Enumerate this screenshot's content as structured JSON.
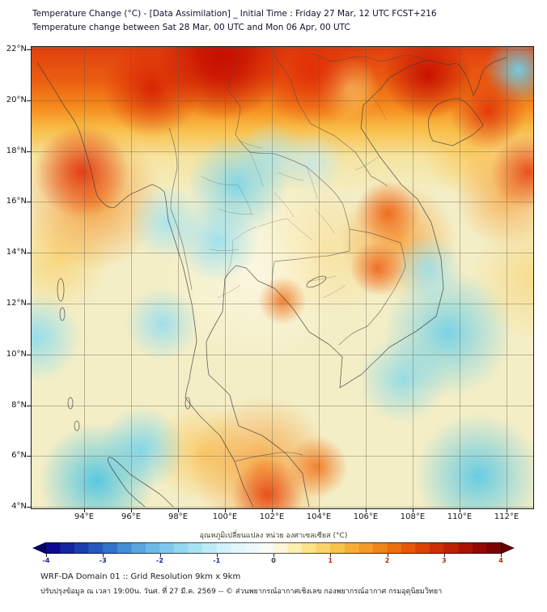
{
  "header": {
    "title_line1": "Temperature Change (°C) - [Data Assimilation] _ Initial Time : Friday 27 Mar, 12 UTC FCST+216",
    "title_line2": "Temperature change between Sat 28 Mar, 00 UTC and Mon 06 Apr, 00 UTC"
  },
  "map": {
    "lat_ticks": [
      "22°N",
      "20°N",
      "18°N",
      "16°N",
      "14°N",
      "12°N",
      "10°N",
      "8°N",
      "6°N",
      "4°N"
    ],
    "lon_ticks": [
      "94°E",
      "96°E",
      "98°E",
      "100°E",
      "102°E",
      "104°E",
      "106°E",
      "108°E",
      "110°E",
      "112°E"
    ]
  },
  "colorbar": {
    "title": "อุณหภูมิเปลี่ยนแปลง หน่วย องศาเซลเซียส (°C)",
    "range_min": -4,
    "range_max": 4,
    "tick_labels": [
      "-4",
      "-3",
      "-2",
      "-1",
      "0",
      "1",
      "2",
      "3",
      "4"
    ],
    "tick_colors": [
      "#18249c",
      "#18249c",
      "#18249c",
      "#18249c",
      "#333333",
      "#b03000",
      "#b03000",
      "#b03000",
      "#b03000"
    ],
    "left_arrow_color": "#060460",
    "right_arrow_color": "#5e0101",
    "stops": [
      "#0b0b8f",
      "#14259e",
      "#1d3fae",
      "#2659bd",
      "#3173cc",
      "#458cd6",
      "#59a5e0",
      "#6db9e6",
      "#81c9ec",
      "#95d6f0",
      "#a9e1f4",
      "#bdebf7",
      "#d1f2fa",
      "#e2f7fb",
      "#eef9fb",
      "#f7fcf4",
      "#fdf7d9",
      "#fdeeb2",
      "#fce28b",
      "#fad468",
      "#f8c24d",
      "#f6ae38",
      "#f39927",
      "#f08418",
      "#ec6e0e",
      "#e65807",
      "#db4204",
      "#cd2f02",
      "#bc2002",
      "#a81301",
      "#920901",
      "#7a0301"
    ]
  },
  "footer": {
    "line1": "WRF-DA Domain 01 :: Grid Resolution 9km x 9km",
    "line2": "ปรับปรุงข้อมูล ณ เวลา 19:00น. วันศ. ที่ 27 มี.ค. 2569 -- © ส่วนพยากรณ์อากาศเชิงเลข กองพยากรณ์อากาศ กรมอุตุนิยมวิทยา"
  }
}
